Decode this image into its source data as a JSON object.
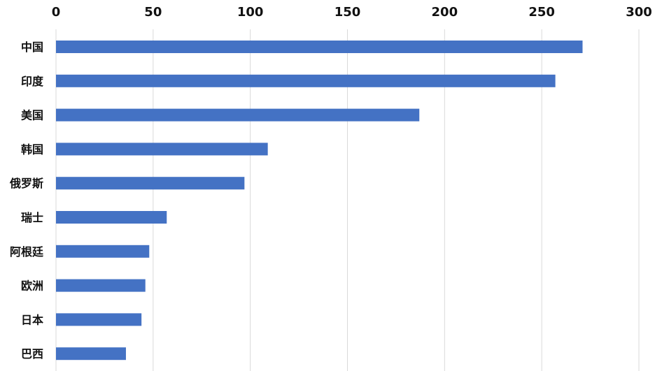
{
  "chart_data": {
    "type": "bar",
    "orientation": "horizontal",
    "categories": [
      "中国",
      "印度",
      "美国",
      "韩国",
      "俄罗斯",
      "瑞士",
      "阿根廷",
      "欧洲",
      "日本",
      "巴西"
    ],
    "values": [
      271,
      257,
      187,
      109,
      97,
      57,
      48,
      46,
      44,
      36
    ],
    "xlim": [
      0,
      300
    ],
    "xticks": [
      "0",
      "50",
      "100",
      "150",
      "200",
      "250",
      "300"
    ],
    "x_axis_position": "top",
    "grid": true,
    "legend": "none",
    "bar_color": "#4472C4"
  }
}
